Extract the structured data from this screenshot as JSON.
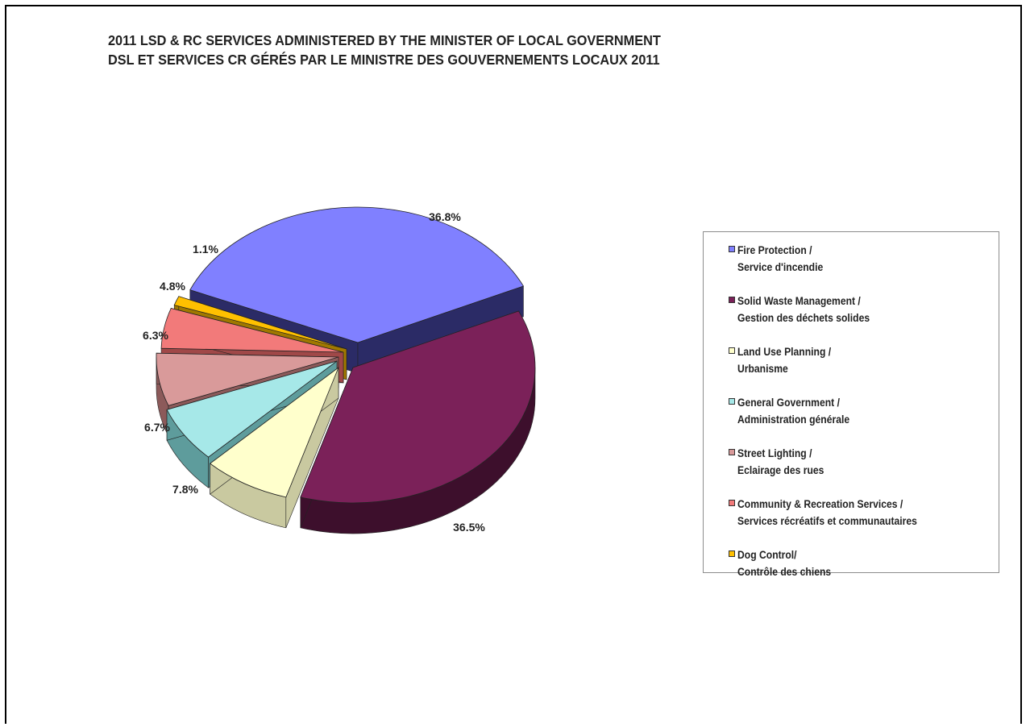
{
  "chart_data": {
    "type": "pie",
    "title": "2011 LSD & RC SERVICES ADMINISTERED BY THE MINISTER OF LOCAL GOVERNMENT",
    "subtitle": "DSL ET SERVICES CR GÉRÉS PAR LE MINISTRE DES GOUVERNEMENTS LOCAUX 2011",
    "legend_position": "right",
    "slices": [
      {
        "label_en": "Fire Protection /",
        "label_fr": "Service d'incendie",
        "value": 36.8,
        "value_label": "36.8%",
        "color": "#8080ff",
        "side_color": "#2b2b66"
      },
      {
        "label_en": "Solid Waste Management /",
        "label_fr": "Gestion des déchets solides",
        "value": 36.5,
        "value_label": "36.5%",
        "color": "#7b2159",
        "side_color": "#3d0f2c"
      },
      {
        "label_en": "Land Use Planning /",
        "label_fr": "Urbanisme",
        "value": 7.8,
        "value_label": "7.8%",
        "color": "#ffffcc",
        "side_color": "#c9c9a0"
      },
      {
        "label_en": "General Government /",
        "label_fr": "Administration générale",
        "value": 6.7,
        "value_label": "6.7%",
        "color": "#a6e8e8",
        "side_color": "#5e9c9c"
      },
      {
        "label_en": "Street Lighting /",
        "label_fr": "Eclairage des rues",
        "value": 6.3,
        "value_label": "6.3%",
        "color": "#d99a9a",
        "side_color": "#8c5a5a"
      },
      {
        "label_en": "Community & Recreation Services /",
        "label_fr": "Services récréatifs et communautaires",
        "value": 4.8,
        "value_label": "4.8%",
        "color": "#f27a7a",
        "side_color": "#a04848"
      },
      {
        "label_en": "Dog Control/",
        "label_fr": "Contrôle des chiens",
        "value": 1.1,
        "value_label": "1.1%",
        "color": "#ffc000",
        "side_color": "#a07800"
      }
    ]
  }
}
